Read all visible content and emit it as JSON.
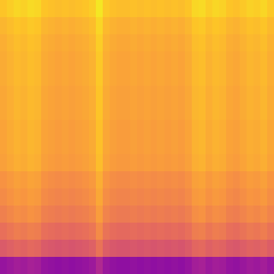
{
  "chart_data": {
    "type": "heatmap",
    "grid": false,
    "tick_labels": false,
    "zlim": [
      0,
      100
    ],
    "cells": [
      [
        88,
        90,
        92,
        91,
        93,
        92,
        88,
        87,
        86,
        87,
        86,
        87,
        88,
        90,
        96,
        89,
        87,
        86,
        86,
        87,
        86,
        87,
        86,
        87,
        86,
        87,
        86,
        88,
        92,
        93,
        90,
        92,
        91,
        88,
        87,
        89,
        91,
        90,
        92,
        89
      ],
      [
        84,
        86,
        88,
        87,
        89,
        88,
        84,
        83,
        82,
        83,
        82,
        83,
        84,
        86,
        92,
        85,
        83,
        82,
        82,
        83,
        82,
        83,
        82,
        83,
        82,
        83,
        82,
        84,
        88,
        89,
        86,
        88,
        87,
        84,
        83,
        85,
        87,
        86,
        88,
        85
      ],
      [
        82,
        84,
        86,
        85,
        87,
        86,
        82,
        81,
        80,
        81,
        80,
        81,
        82,
        84,
        90,
        83,
        81,
        80,
        80,
        81,
        80,
        81,
        80,
        81,
        80,
        81,
        80,
        82,
        86,
        87,
        84,
        86,
        85,
        82,
        81,
        83,
        85,
        84,
        86,
        83
      ],
      [
        81,
        83,
        85,
        84,
        86,
        85,
        81,
        80,
        79,
        80,
        79,
        80,
        81,
        83,
        89,
        82,
        80,
        79,
        79,
        80,
        79,
        80,
        79,
        80,
        79,
        80,
        79,
        81,
        85,
        86,
        83,
        85,
        84,
        81,
        80,
        82,
        84,
        83,
        85,
        82
      ],
      [
        81,
        83,
        85,
        84,
        86,
        85,
        81,
        80,
        79,
        80,
        79,
        80,
        81,
        83,
        89,
        82,
        80,
        79,
        79,
        80,
        79,
        80,
        79,
        80,
        79,
        80,
        79,
        81,
        85,
        86,
        83,
        85,
        84,
        81,
        80,
        82,
        84,
        83,
        85,
        82
      ],
      [
        80,
        82,
        84,
        83,
        85,
        84,
        80,
        79,
        78,
        79,
        78,
        79,
        80,
        82,
        88,
        81,
        79,
        78,
        78,
        79,
        78,
        79,
        78,
        79,
        78,
        79,
        78,
        80,
        84,
        85,
        82,
        84,
        83,
        80,
        79,
        81,
        83,
        82,
        84,
        81
      ],
      [
        80,
        82,
        84,
        83,
        85,
        84,
        80,
        79,
        78,
        79,
        78,
        79,
        80,
        82,
        88,
        81,
        79,
        78,
        78,
        79,
        78,
        79,
        78,
        79,
        78,
        79,
        78,
        80,
        84,
        85,
        82,
        84,
        83,
        80,
        79,
        81,
        83,
        82,
        84,
        81
      ],
      [
        79,
        81,
        83,
        82,
        84,
        83,
        79,
        78,
        77,
        78,
        77,
        78,
        79,
        81,
        87,
        80,
        78,
        77,
        77,
        78,
        77,
        78,
        77,
        78,
        77,
        78,
        77,
        79,
        83,
        84,
        81,
        83,
        82,
        79,
        78,
        80,
        82,
        81,
        83,
        80
      ],
      [
        79,
        81,
        83,
        82,
        84,
        83,
        79,
        78,
        77,
        78,
        77,
        78,
        79,
        81,
        87,
        80,
        78,
        77,
        77,
        78,
        77,
        78,
        77,
        78,
        77,
        78,
        77,
        79,
        83,
        84,
        81,
        83,
        82,
        79,
        78,
        80,
        82,
        81,
        83,
        80
      ],
      [
        78,
        80,
        82,
        81,
        83,
        82,
        78,
        77,
        76,
        77,
        76,
        77,
        78,
        80,
        86,
        79,
        77,
        76,
        76,
        77,
        76,
        77,
        76,
        77,
        76,
        77,
        76,
        78,
        82,
        83,
        80,
        82,
        81,
        78,
        77,
        79,
        81,
        80,
        82,
        79
      ],
      [
        74,
        76,
        78,
        77,
        79,
        78,
        74,
        73,
        72,
        73,
        72,
        73,
        74,
        76,
        82,
        75,
        73,
        72,
        72,
        73,
        72,
        73,
        72,
        73,
        72,
        73,
        72,
        74,
        78,
        79,
        76,
        78,
        77,
        74,
        73,
        75,
        77,
        76,
        78,
        75
      ],
      [
        72,
        74,
        76,
        75,
        77,
        76,
        72,
        71,
        70,
        71,
        70,
        71,
        72,
        74,
        80,
        73,
        71,
        70,
        70,
        71,
        70,
        71,
        70,
        71,
        70,
        71,
        70,
        72,
        76,
        77,
        74,
        76,
        75,
        72,
        71,
        73,
        75,
        74,
        76,
        73
      ],
      [
        69,
        71,
        73,
        72,
        74,
        73,
        69,
        68,
        67,
        68,
        67,
        68,
        69,
        71,
        77,
        70,
        68,
        67,
        67,
        68,
        67,
        68,
        67,
        68,
        67,
        68,
        67,
        69,
        73,
        74,
        71,
        73,
        72,
        69,
        68,
        70,
        72,
        71,
        73,
        70
      ],
      [
        64,
        66,
        68,
        67,
        69,
        68,
        64,
        63,
        62,
        63,
        62,
        63,
        64,
        66,
        72,
        65,
        63,
        62,
        62,
        63,
        62,
        63,
        62,
        63,
        62,
        63,
        62,
        64,
        68,
        69,
        66,
        68,
        67,
        64,
        63,
        65,
        67,
        66,
        68,
        65
      ],
      [
        57,
        59,
        61,
        60,
        62,
        61,
        57,
        56,
        55,
        56,
        55,
        56,
        57,
        59,
        65,
        58,
        56,
        55,
        55,
        56,
        55,
        56,
        55,
        56,
        55,
        56,
        55,
        57,
        61,
        62,
        59,
        61,
        60,
        57,
        56,
        58,
        60,
        59,
        61,
        58
      ],
      [
        32,
        34,
        36,
        35,
        37,
        36,
        32,
        31,
        30,
        31,
        30,
        31,
        32,
        34,
        40,
        33,
        31,
        30,
        30,
        31,
        30,
        31,
        30,
        31,
        30,
        31,
        30,
        32,
        36,
        37,
        34,
        36,
        35,
        32,
        31,
        33,
        35,
        34,
        36,
        33
      ]
    ]
  }
}
